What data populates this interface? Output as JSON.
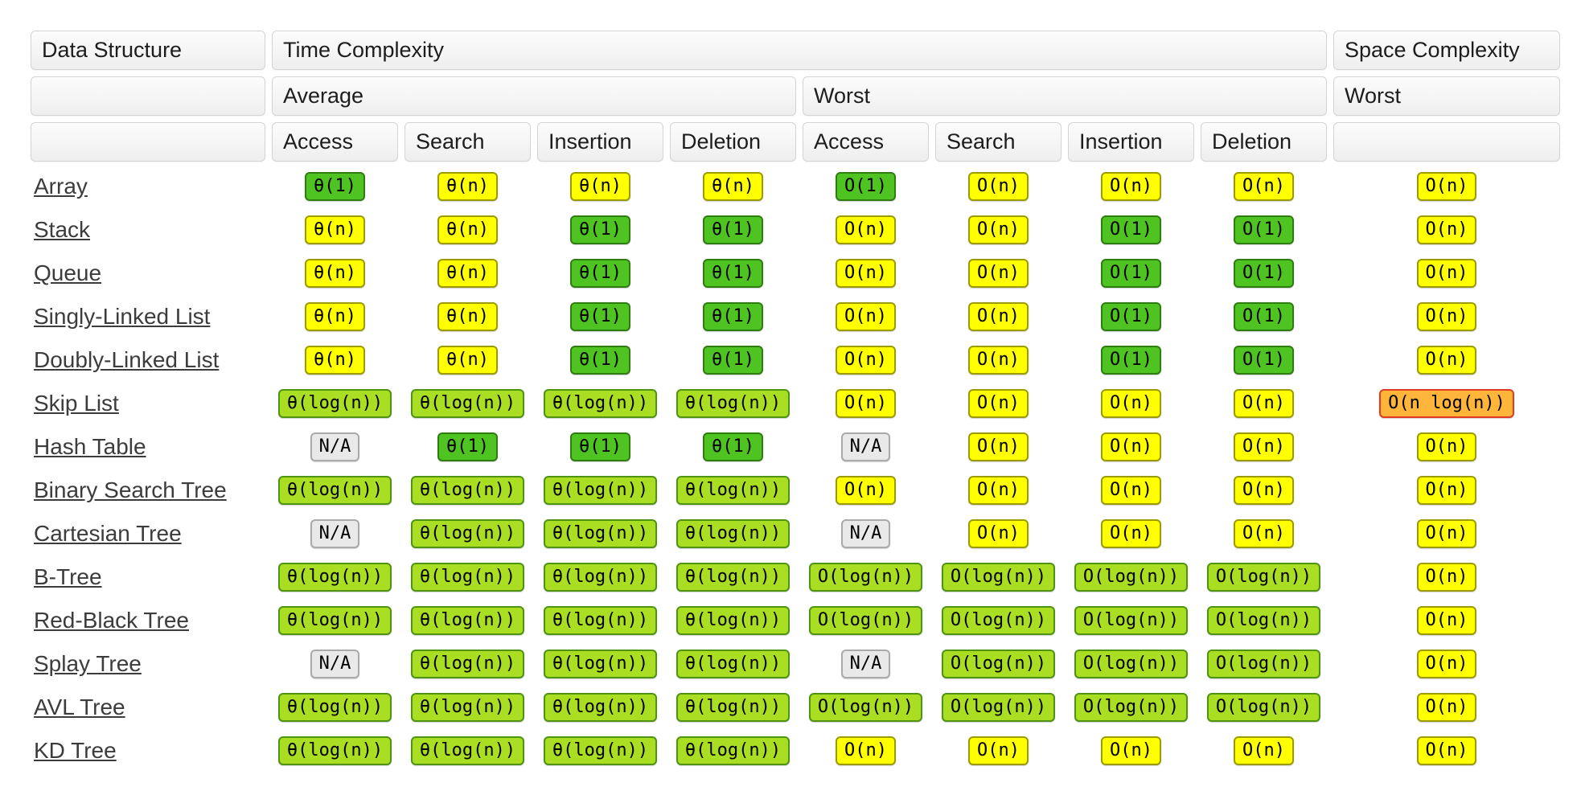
{
  "header": {
    "data_structure_label": "Data Structure",
    "time_complexity_label": "Time Complexity",
    "space_complexity_label": "Space Complexity",
    "average_label": "Average",
    "worst_label": "Worst",
    "space_worst_label": "Worst",
    "operations": [
      "Access",
      "Search",
      "Insertion",
      "Deletion",
      "Access",
      "Search",
      "Insertion",
      "Deletion"
    ]
  },
  "colors": {
    "green": {
      "bg": "#4ec321",
      "border": "#2e7d10"
    },
    "lightgreen": {
      "bg": "#aade22",
      "border": "#4e9312"
    },
    "yellow": {
      "bg": "#ffff00",
      "border": "#9b9b00"
    },
    "gray": {
      "bg": "#e9e9e9",
      "border": "#aaaaaa"
    },
    "orange": {
      "bg": "#ffb53a",
      "border": "#e23b24"
    }
  },
  "rows": [
    {
      "name": "Array",
      "cells": [
        {
          "text": "θ(1)",
          "tone": "green"
        },
        {
          "text": "θ(n)",
          "tone": "yellow"
        },
        {
          "text": "θ(n)",
          "tone": "yellow"
        },
        {
          "text": "θ(n)",
          "tone": "yellow"
        },
        {
          "text": "O(1)",
          "tone": "green"
        },
        {
          "text": "O(n)",
          "tone": "yellow"
        },
        {
          "text": "O(n)",
          "tone": "yellow"
        },
        {
          "text": "O(n)",
          "tone": "yellow"
        },
        {
          "text": "O(n)",
          "tone": "yellow"
        }
      ]
    },
    {
      "name": "Stack",
      "cells": [
        {
          "text": "θ(n)",
          "tone": "yellow"
        },
        {
          "text": "θ(n)",
          "tone": "yellow"
        },
        {
          "text": "θ(1)",
          "tone": "green"
        },
        {
          "text": "θ(1)",
          "tone": "green"
        },
        {
          "text": "O(n)",
          "tone": "yellow"
        },
        {
          "text": "O(n)",
          "tone": "yellow"
        },
        {
          "text": "O(1)",
          "tone": "green"
        },
        {
          "text": "O(1)",
          "tone": "green"
        },
        {
          "text": "O(n)",
          "tone": "yellow"
        }
      ]
    },
    {
      "name": "Queue",
      "cells": [
        {
          "text": "θ(n)",
          "tone": "yellow"
        },
        {
          "text": "θ(n)",
          "tone": "yellow"
        },
        {
          "text": "θ(1)",
          "tone": "green"
        },
        {
          "text": "θ(1)",
          "tone": "green"
        },
        {
          "text": "O(n)",
          "tone": "yellow"
        },
        {
          "text": "O(n)",
          "tone": "yellow"
        },
        {
          "text": "O(1)",
          "tone": "green"
        },
        {
          "text": "O(1)",
          "tone": "green"
        },
        {
          "text": "O(n)",
          "tone": "yellow"
        }
      ]
    },
    {
      "name": "Singly-Linked List",
      "cells": [
        {
          "text": "θ(n)",
          "tone": "yellow"
        },
        {
          "text": "θ(n)",
          "tone": "yellow"
        },
        {
          "text": "θ(1)",
          "tone": "green"
        },
        {
          "text": "θ(1)",
          "tone": "green"
        },
        {
          "text": "O(n)",
          "tone": "yellow"
        },
        {
          "text": "O(n)",
          "tone": "yellow"
        },
        {
          "text": "O(1)",
          "tone": "green"
        },
        {
          "text": "O(1)",
          "tone": "green"
        },
        {
          "text": "O(n)",
          "tone": "yellow"
        }
      ]
    },
    {
      "name": "Doubly-Linked List",
      "cells": [
        {
          "text": "θ(n)",
          "tone": "yellow"
        },
        {
          "text": "θ(n)",
          "tone": "yellow"
        },
        {
          "text": "θ(1)",
          "tone": "green"
        },
        {
          "text": "θ(1)",
          "tone": "green"
        },
        {
          "text": "O(n)",
          "tone": "yellow"
        },
        {
          "text": "O(n)",
          "tone": "yellow"
        },
        {
          "text": "O(1)",
          "tone": "green"
        },
        {
          "text": "O(1)",
          "tone": "green"
        },
        {
          "text": "O(n)",
          "tone": "yellow"
        }
      ]
    },
    {
      "name": "Skip List",
      "cells": [
        {
          "text": "θ(log(n))",
          "tone": "lightgreen"
        },
        {
          "text": "θ(log(n))",
          "tone": "lightgreen"
        },
        {
          "text": "θ(log(n))",
          "tone": "lightgreen"
        },
        {
          "text": "θ(log(n))",
          "tone": "lightgreen"
        },
        {
          "text": "O(n)",
          "tone": "yellow"
        },
        {
          "text": "O(n)",
          "tone": "yellow"
        },
        {
          "text": "O(n)",
          "tone": "yellow"
        },
        {
          "text": "O(n)",
          "tone": "yellow"
        },
        {
          "text": "O(n log(n))",
          "tone": "orange"
        }
      ]
    },
    {
      "name": "Hash Table",
      "cells": [
        {
          "text": "N/A",
          "tone": "gray"
        },
        {
          "text": "θ(1)",
          "tone": "green"
        },
        {
          "text": "θ(1)",
          "tone": "green"
        },
        {
          "text": "θ(1)",
          "tone": "green"
        },
        {
          "text": "N/A",
          "tone": "gray"
        },
        {
          "text": "O(n)",
          "tone": "yellow"
        },
        {
          "text": "O(n)",
          "tone": "yellow"
        },
        {
          "text": "O(n)",
          "tone": "yellow"
        },
        {
          "text": "O(n)",
          "tone": "yellow"
        }
      ]
    },
    {
      "name": "Binary Search Tree",
      "cells": [
        {
          "text": "θ(log(n))",
          "tone": "lightgreen"
        },
        {
          "text": "θ(log(n))",
          "tone": "lightgreen"
        },
        {
          "text": "θ(log(n))",
          "tone": "lightgreen"
        },
        {
          "text": "θ(log(n))",
          "tone": "lightgreen"
        },
        {
          "text": "O(n)",
          "tone": "yellow"
        },
        {
          "text": "O(n)",
          "tone": "yellow"
        },
        {
          "text": "O(n)",
          "tone": "yellow"
        },
        {
          "text": "O(n)",
          "tone": "yellow"
        },
        {
          "text": "O(n)",
          "tone": "yellow"
        }
      ]
    },
    {
      "name": "Cartesian Tree",
      "cells": [
        {
          "text": "N/A",
          "tone": "gray"
        },
        {
          "text": "θ(log(n))",
          "tone": "lightgreen"
        },
        {
          "text": "θ(log(n))",
          "tone": "lightgreen"
        },
        {
          "text": "θ(log(n))",
          "tone": "lightgreen"
        },
        {
          "text": "N/A",
          "tone": "gray"
        },
        {
          "text": "O(n)",
          "tone": "yellow"
        },
        {
          "text": "O(n)",
          "tone": "yellow"
        },
        {
          "text": "O(n)",
          "tone": "yellow"
        },
        {
          "text": "O(n)",
          "tone": "yellow"
        }
      ]
    },
    {
      "name": "B-Tree",
      "cells": [
        {
          "text": "θ(log(n))",
          "tone": "lightgreen"
        },
        {
          "text": "θ(log(n))",
          "tone": "lightgreen"
        },
        {
          "text": "θ(log(n))",
          "tone": "lightgreen"
        },
        {
          "text": "θ(log(n))",
          "tone": "lightgreen"
        },
        {
          "text": "O(log(n))",
          "tone": "lightgreen"
        },
        {
          "text": "O(log(n))",
          "tone": "lightgreen"
        },
        {
          "text": "O(log(n))",
          "tone": "lightgreen"
        },
        {
          "text": "O(log(n))",
          "tone": "lightgreen"
        },
        {
          "text": "O(n)",
          "tone": "yellow"
        }
      ]
    },
    {
      "name": "Red-Black Tree",
      "cells": [
        {
          "text": "θ(log(n))",
          "tone": "lightgreen"
        },
        {
          "text": "θ(log(n))",
          "tone": "lightgreen"
        },
        {
          "text": "θ(log(n))",
          "tone": "lightgreen"
        },
        {
          "text": "θ(log(n))",
          "tone": "lightgreen"
        },
        {
          "text": "O(log(n))",
          "tone": "lightgreen"
        },
        {
          "text": "O(log(n))",
          "tone": "lightgreen"
        },
        {
          "text": "O(log(n))",
          "tone": "lightgreen"
        },
        {
          "text": "O(log(n))",
          "tone": "lightgreen"
        },
        {
          "text": "O(n)",
          "tone": "yellow"
        }
      ]
    },
    {
      "name": "Splay Tree",
      "cells": [
        {
          "text": "N/A",
          "tone": "gray"
        },
        {
          "text": "θ(log(n))",
          "tone": "lightgreen"
        },
        {
          "text": "θ(log(n))",
          "tone": "lightgreen"
        },
        {
          "text": "θ(log(n))",
          "tone": "lightgreen"
        },
        {
          "text": "N/A",
          "tone": "gray"
        },
        {
          "text": "O(log(n))",
          "tone": "lightgreen"
        },
        {
          "text": "O(log(n))",
          "tone": "lightgreen"
        },
        {
          "text": "O(log(n))",
          "tone": "lightgreen"
        },
        {
          "text": "O(n)",
          "tone": "yellow"
        }
      ]
    },
    {
      "name": "AVL Tree",
      "cells": [
        {
          "text": "θ(log(n))",
          "tone": "lightgreen"
        },
        {
          "text": "θ(log(n))",
          "tone": "lightgreen"
        },
        {
          "text": "θ(log(n))",
          "tone": "lightgreen"
        },
        {
          "text": "θ(log(n))",
          "tone": "lightgreen"
        },
        {
          "text": "O(log(n))",
          "tone": "lightgreen"
        },
        {
          "text": "O(log(n))",
          "tone": "lightgreen"
        },
        {
          "text": "O(log(n))",
          "tone": "lightgreen"
        },
        {
          "text": "O(log(n))",
          "tone": "lightgreen"
        },
        {
          "text": "O(n)",
          "tone": "yellow"
        }
      ]
    },
    {
      "name": "KD Tree",
      "cells": [
        {
          "text": "θ(log(n))",
          "tone": "lightgreen"
        },
        {
          "text": "θ(log(n))",
          "tone": "lightgreen"
        },
        {
          "text": "θ(log(n))",
          "tone": "lightgreen"
        },
        {
          "text": "θ(log(n))",
          "tone": "lightgreen"
        },
        {
          "text": "O(n)",
          "tone": "yellow"
        },
        {
          "text": "O(n)",
          "tone": "yellow"
        },
        {
          "text": "O(n)",
          "tone": "yellow"
        },
        {
          "text": "O(n)",
          "tone": "yellow"
        },
        {
          "text": "O(n)",
          "tone": "yellow"
        }
      ]
    }
  ]
}
